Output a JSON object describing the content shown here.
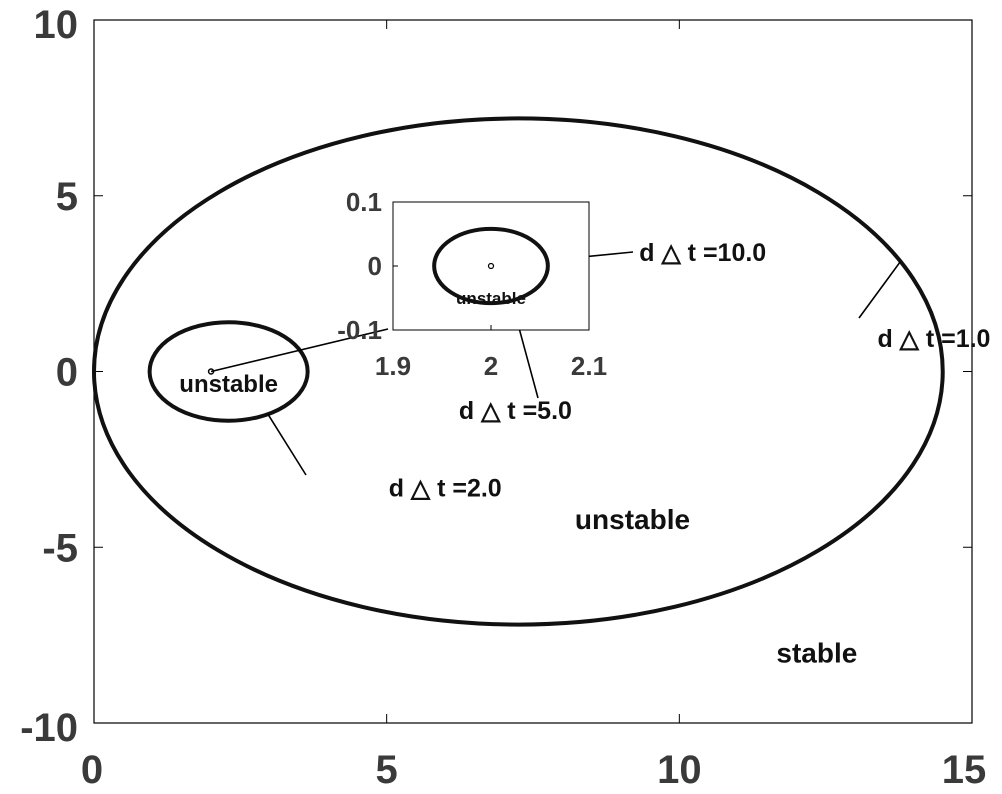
{
  "chart_data": {
    "type": "line",
    "title": "",
    "xlabel": "",
    "ylabel": "",
    "xlim": [
      0,
      15
    ],
    "ylim": [
      -10,
      10
    ],
    "grid": false,
    "x_ticks": [
      "0",
      "5",
      "10",
      "15"
    ],
    "y_ticks": [
      "-10",
      "-5",
      "0",
      "5",
      "10"
    ],
    "series": [
      {
        "label": "d △ t =1.0",
        "shape": "circle",
        "center": [
          7.25,
          0
        ],
        "radius_x": 7.25,
        "radius_y": 7.2
      },
      {
        "label": "d △ t =2.0",
        "shape": "circle",
        "center": [
          2.3,
          0
        ],
        "radius_x": 1.35,
        "radius_y": 1.4
      }
    ],
    "region_labels": [
      {
        "text": "unstable",
        "x": 2.3,
        "y": -0.3
      },
      {
        "text": "unstable",
        "x": 9.2,
        "y": -4.2
      },
      {
        "text": "stable",
        "x": 12.35,
        "y": -8.0
      }
    ],
    "marker": {
      "x": 2.0,
      "y": 0.0
    },
    "inset": {
      "xlim": [
        1.9,
        2.1
      ],
      "ylim": [
        -0.1,
        0.1
      ],
      "x_ticks": [
        "1.9",
        "2",
        "2.1"
      ],
      "y_ticks": [
        "-0.1",
        "0",
        "0.1"
      ],
      "series": [
        {
          "label": "d △ t =5.0",
          "shape": "circle",
          "center": [
            2.0,
            0.0
          ],
          "radius_x": 0.058,
          "radius_y": 0.058
        },
        {
          "label": "d △ t =10.0",
          "shape": "point",
          "center": [
            2.0,
            0.0
          ]
        }
      ],
      "region_labels": [
        {
          "text": "unstable",
          "x": 2.0,
          "y": -0.05
        }
      ]
    },
    "annotations": [
      {
        "text": "d △ t =1.0",
        "x": 14.35,
        "y": 0.95
      },
      {
        "text": "d △ t =2.0",
        "x": 6.0,
        "y": -3.3
      },
      {
        "text": "d △ t =5.0",
        "x": 7.2,
        "y": -1.1
      },
      {
        "text": "d △ t =10.0",
        "x": 10.4,
        "y": 3.4
      }
    ]
  }
}
